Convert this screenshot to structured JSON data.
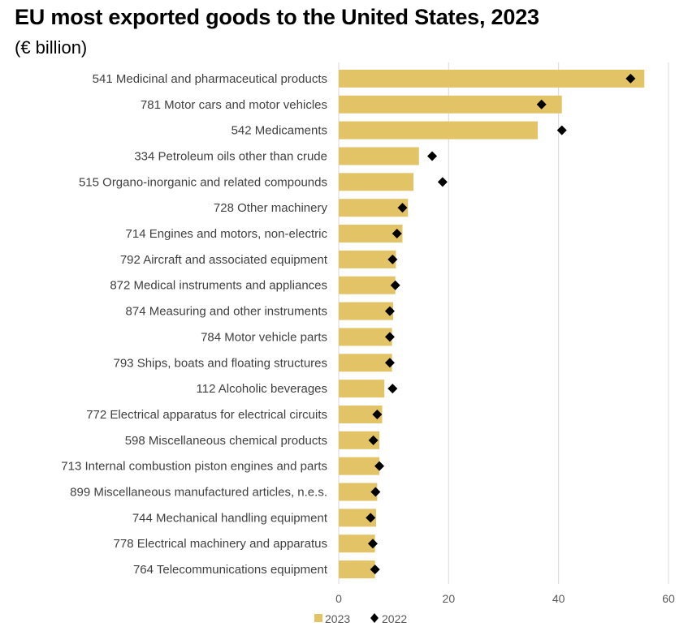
{
  "header": {
    "title": "EU most exported goods to the United States, 2023",
    "subtitle": "(€ billion)"
  },
  "colors": {
    "bar2023": "#E2C467",
    "marker2022": "#000000",
    "grid": "#D9D9D9"
  },
  "chart_data": {
    "type": "bar",
    "orientation": "horizontal",
    "title": "EU most exported goods to the United States, 2023",
    "subtitle": "(€ billion)",
    "xlim": [
      0,
      60
    ],
    "xticks": [
      "0",
      "20",
      "40",
      "60"
    ],
    "grid": true,
    "legend_position": "bottom",
    "categories": [
      "541 Medicinal and pharmaceutical products",
      "781 Motor cars and motor vehicles",
      "542 Medicaments",
      "334 Petroleum oils other than crude",
      "515 Organo-inorganic and related compounds",
      "728 Other machinery",
      "714 Engines and motors, non-electric",
      "792 Aircraft and associated equipment",
      "872 Medical instruments and appliances",
      "874 Measuring and other instruments",
      "784 Motor vehicle parts",
      "793 Ships, boats and floating structures",
      "112 Alcoholic beverages",
      "772 Electrical apparatus for electrical circuits",
      "598 Miscellaneous chemical products",
      "713 Internal combustion piston engines and parts",
      "899 Miscellaneous manufactured articles, n.e.s.",
      "744 Mechanical handling equipment",
      "778 Electrical machinery and apparatus",
      "764 Telecommunications equipment"
    ],
    "series": [
      {
        "name": "2023",
        "kind": "bar",
        "values": [
          55.6,
          40.6,
          36.2,
          14.6,
          13.6,
          12.6,
          11.6,
          10.4,
          10.3,
          9.9,
          9.7,
          9.7,
          8.3,
          7.9,
          7.4,
          7.4,
          7.0,
          6.8,
          6.6,
          6.6
        ]
      },
      {
        "name": "2022",
        "kind": "marker",
        "values": [
          53.1,
          36.9,
          40.6,
          17.0,
          18.9,
          11.6,
          10.6,
          9.8,
          10.3,
          9.3,
          9.3,
          9.3,
          9.8,
          7.0,
          6.3,
          7.4,
          6.7,
          5.8,
          6.2,
          6.6
        ]
      }
    ]
  }
}
